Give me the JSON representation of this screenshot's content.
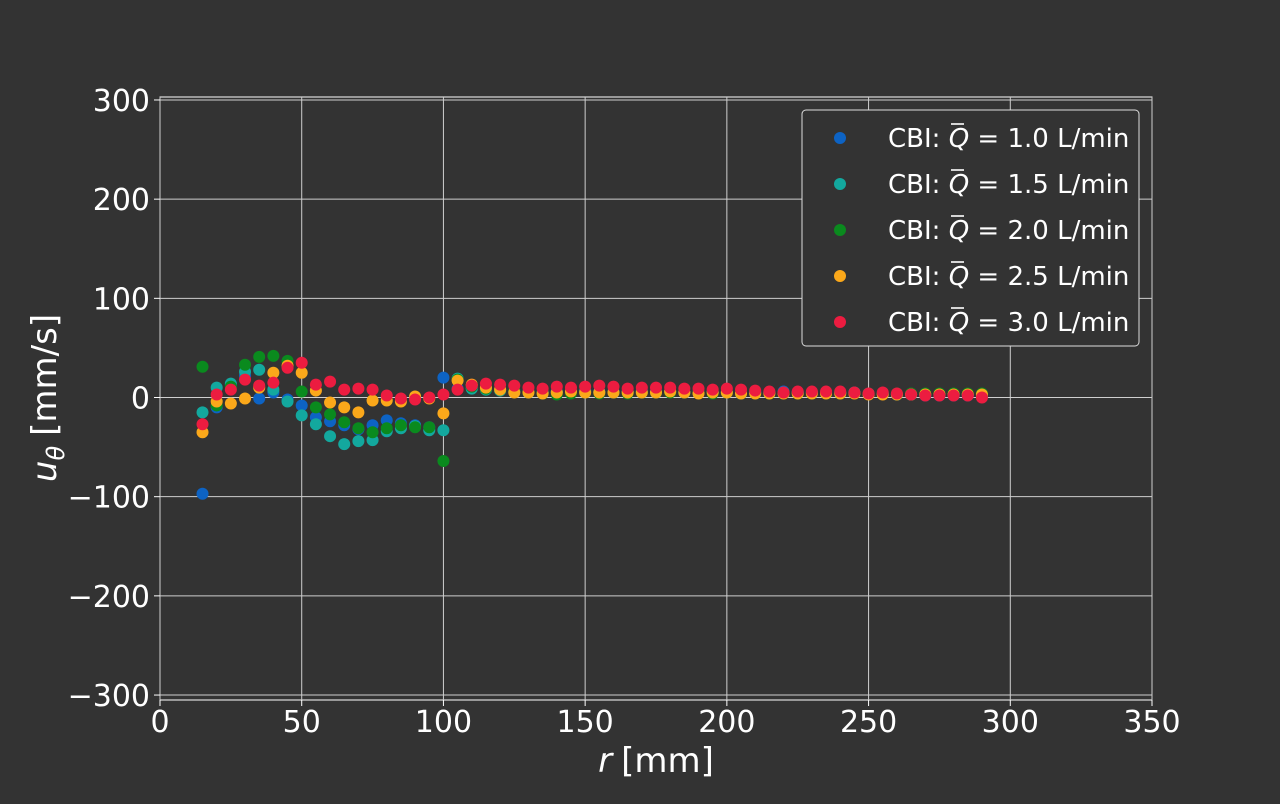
{
  "chart_data": {
    "type": "scatter",
    "xlabel_var": "r",
    "xlabel_unit": "[mm]",
    "ylabel_var": "u",
    "ylabel_sub": "θ",
    "ylabel_unit": "[mm/s]",
    "xlim": [
      0,
      350
    ],
    "ylim": [
      -305,
      303
    ],
    "xticks": [
      0,
      50,
      100,
      150,
      200,
      250,
      300,
      350
    ],
    "yticks": [
      -300,
      -200,
      -100,
      0,
      100,
      200,
      300
    ],
    "grid": true,
    "legend_position": "top-right",
    "series": [
      {
        "name_prefix": "CBI: ",
        "name_var": "Q",
        "name_value": " = 1.0 L/min",
        "color": "#0d63c4",
        "x": [
          15,
          20,
          25,
          30,
          35,
          40,
          45,
          50,
          55,
          60,
          65,
          70,
          75,
          80,
          85,
          90,
          95,
          100,
          105,
          110,
          115,
          120,
          125,
          130,
          135,
          140,
          145,
          150,
          155,
          160,
          165,
          170,
          175,
          180,
          185,
          190,
          195,
          200,
          205,
          210,
          215,
          220,
          225,
          230,
          235,
          240,
          245,
          250,
          255,
          260,
          265,
          270,
          275,
          280,
          285,
          290
        ],
        "y": [
          -97,
          -10,
          13,
          22,
          -1,
          5,
          -2,
          -8,
          -20,
          -24,
          -28,
          -32,
          -28,
          -23,
          -26,
          -28,
          -30,
          20,
          9,
          10,
          9,
          8,
          7,
          6,
          5,
          6,
          6,
          7,
          6,
          6,
          5,
          7,
          6,
          6,
          5,
          5,
          6,
          5,
          4,
          5,
          5,
          6,
          5,
          5,
          5,
          4,
          5,
          4,
          4,
          3,
          3,
          2,
          2,
          2,
          2,
          2
        ]
      },
      {
        "name_prefix": "CBI: ",
        "name_var": "Q",
        "name_value": " = 1.5 L/min",
        "color": "#13a89e",
        "x": [
          15,
          20,
          25,
          30,
          35,
          40,
          45,
          50,
          55,
          60,
          65,
          70,
          75,
          80,
          85,
          90,
          95,
          100,
          105,
          110,
          115,
          120,
          125,
          130,
          135,
          140,
          145,
          150,
          155,
          160,
          165,
          170,
          175,
          180,
          185,
          190,
          195,
          200,
          205,
          210,
          215,
          220,
          225,
          230,
          235,
          240,
          245,
          250,
          255,
          260,
          265,
          270,
          275,
          280,
          285,
          290
        ],
        "y": [
          -15,
          10,
          14,
          26,
          28,
          8,
          -4,
          -18,
          -27,
          -39,
          -47,
          -44,
          -43,
          -34,
          -31,
          -29,
          -33,
          -33,
          19,
          9,
          8,
          7,
          6,
          5,
          5,
          5,
          5,
          6,
          5,
          5,
          6,
          5,
          5,
          6,
          5,
          5,
          5,
          5,
          4,
          5,
          5,
          5,
          5,
          5,
          5,
          5,
          5,
          4,
          4,
          3,
          3,
          3,
          3,
          3,
          3,
          3
        ]
      },
      {
        "name_prefix": "CBI: ",
        "name_var": "Q",
        "name_value": " = 2.0 L/min",
        "color": "#0a8a1e",
        "x": [
          15,
          20,
          25,
          30,
          35,
          40,
          45,
          50,
          55,
          60,
          65,
          70,
          75,
          80,
          85,
          90,
          95,
          100,
          105,
          110,
          115,
          120,
          125,
          130,
          135,
          140,
          145,
          150,
          155,
          160,
          165,
          170,
          175,
          180,
          185,
          190,
          195,
          200,
          205,
          210,
          215,
          220,
          225,
          230,
          235,
          240,
          245,
          250,
          255,
          260,
          265,
          270,
          275,
          280,
          285,
          290
        ],
        "y": [
          31,
          -8,
          11,
          33,
          41,
          42,
          37,
          6,
          -10,
          -17,
          -25,
          -31,
          -35,
          -31,
          -28,
          -30,
          -30,
          -64,
          18,
          11,
          9,
          8,
          7,
          5,
          4,
          3,
          4,
          5,
          4,
          5,
          4,
          5,
          5,
          5,
          5,
          5,
          4,
          5,
          4,
          4,
          4,
          4,
          4,
          4,
          4,
          4,
          4,
          4,
          4,
          4,
          4,
          4,
          4,
          4,
          4,
          4
        ]
      },
      {
        "name_prefix": "CBI: ",
        "name_var": "Q",
        "name_value": " = 2.5 L/min",
        "color": "#fba81a",
        "x": [
          15,
          20,
          25,
          30,
          35,
          40,
          45,
          50,
          55,
          60,
          65,
          70,
          75,
          80,
          85,
          90,
          95,
          100,
          105,
          110,
          115,
          120,
          125,
          130,
          135,
          140,
          145,
          150,
          155,
          160,
          165,
          170,
          175,
          180,
          185,
          190,
          195,
          200,
          205,
          210,
          215,
          220,
          225,
          230,
          235,
          240,
          245,
          250,
          255,
          260,
          265,
          270,
          275,
          280,
          285,
          290
        ],
        "y": [
          -35,
          -4,
          -6,
          -1,
          10,
          25,
          32,
          25,
          7,
          -5,
          -10,
          -15,
          -3,
          -3,
          -4,
          1,
          -1,
          -16,
          17,
          13,
          10,
          8,
          5,
          5,
          4,
          5,
          6,
          5,
          5,
          5,
          5,
          5,
          5,
          6,
          5,
          4,
          5,
          5,
          4,
          4,
          4,
          4,
          4,
          4,
          4,
          4,
          4,
          3,
          3,
          3,
          3,
          3,
          3,
          3,
          3,
          3
        ]
      },
      {
        "name_prefix": "CBI: ",
        "name_var": "Q",
        "name_value": " = 3.0 L/min",
        "color": "#ec1c40",
        "x": [
          15,
          20,
          25,
          30,
          35,
          40,
          45,
          50,
          55,
          60,
          65,
          70,
          75,
          80,
          85,
          90,
          95,
          100,
          105,
          110,
          115,
          120,
          125,
          130,
          135,
          140,
          145,
          150,
          155,
          160,
          165,
          170,
          175,
          180,
          185,
          190,
          195,
          200,
          205,
          210,
          215,
          220,
          225,
          230,
          235,
          240,
          245,
          250,
          255,
          260,
          265,
          270,
          275,
          280,
          285,
          290
        ],
        "y": [
          -27,
          3,
          8,
          18,
          12,
          15,
          30,
          35,
          13,
          16,
          8,
          9,
          8,
          2,
          -1,
          -2,
          0,
          3,
          8,
          12,
          14,
          13,
          12,
          10,
          9,
          11,
          10,
          11,
          12,
          11,
          9,
          10,
          10,
          10,
          9,
          9,
          8,
          9,
          8,
          7,
          6,
          5,
          6,
          6,
          6,
          6,
          5,
          4,
          5,
          4,
          3,
          2,
          2,
          2,
          2,
          0
        ]
      }
    ]
  }
}
